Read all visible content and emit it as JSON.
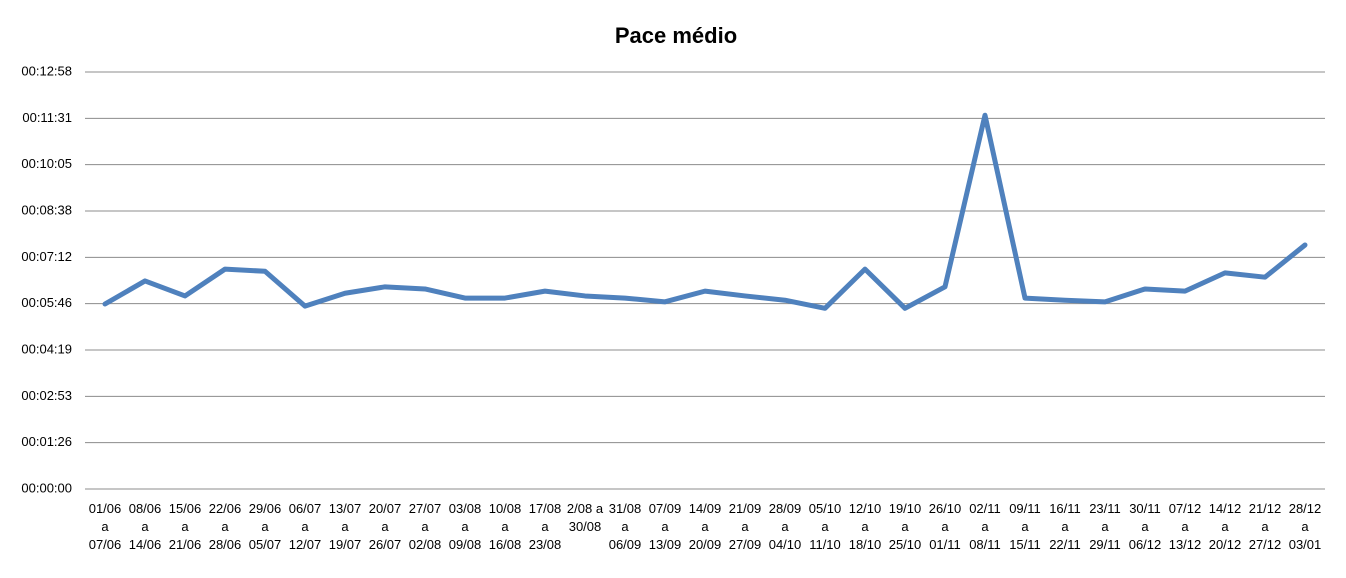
{
  "chart_data": {
    "type": "line",
    "title": "Pace médio",
    "categories": [
      "01/06\na\n07/06",
      "08/06\na\n14/06",
      "15/06\na\n21/06",
      "22/06\na\n28/06",
      "29/06\na\n05/07",
      "06/07\na\n12/07",
      "13/07\na\n19/07",
      "20/07\na\n26/07",
      "27/07\na\n02/08",
      "03/08\na\n09/08",
      "10/08\na\n16/08",
      "17/08\na\n23/08",
      "2/08 a\n30/08",
      "31/08\na\n06/09",
      "07/09\na\n13/09",
      "14/09\na\n20/09",
      "21/09\na\n27/09",
      "28/09\na\n04/10",
      "05/10\na\n11/10",
      "12/10\na\n18/10",
      "19/10\na\n25/10",
      "26/10\na\n01/11",
      "02/11\na\n08/11",
      "09/11\na\n15/11",
      "16/11\na\n22/11",
      "23/11\na\n29/11",
      "30/11\na\n06/12",
      "07/12\na\n13/12",
      "14/12\na\n20/12",
      "21/12\na\n27/12",
      "28/12\na\n03/01"
    ],
    "values": [
      345,
      388,
      360,
      410,
      406,
      341,
      365,
      377,
      373,
      356,
      356,
      369,
      360,
      356,
      349,
      369,
      360,
      352,
      337,
      410,
      337,
      377,
      697,
      356,
      352,
      349,
      373,
      369,
      403,
      395,
      455
    ],
    "color": "#4f81bd",
    "ylim": [
      0,
      777.6
    ],
    "yticks": [
      {
        "value": 0,
        "label": "00:00:00"
      },
      {
        "value": 86.4,
        "label": "00:01:26"
      },
      {
        "value": 172.8,
        "label": "00:02:53"
      },
      {
        "value": 259.2,
        "label": "00:04:19"
      },
      {
        "value": 345.6,
        "label": "00:05:46"
      },
      {
        "value": 432,
        "label": "00:07:12"
      },
      {
        "value": 518.4,
        "label": "00:08:38"
      },
      {
        "value": 604.8,
        "label": "00:10:05"
      },
      {
        "value": 691.2,
        "label": "00:11:31"
      },
      {
        "value": 777.6,
        "label": "00:12:58"
      }
    ],
    "grid": true
  }
}
